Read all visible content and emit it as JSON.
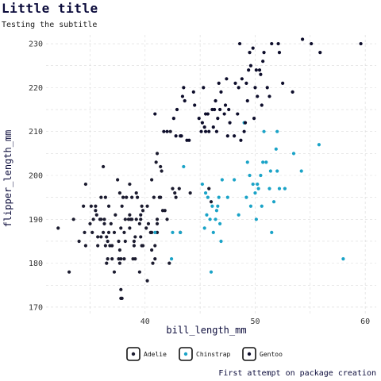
{
  "chart_data": {
    "type": "scatter",
    "title": "Little title",
    "subtitle": "Testing the subtitle",
    "caption": "First attempt on package creation",
    "xlabel": "bill_length_mm",
    "ylabel": "flipper_length_mm",
    "xlim": [
      31,
      61
    ],
    "ylim": [
      168,
      232
    ],
    "x_ticks": [
      40,
      50,
      60
    ],
    "y_ticks": [
      170,
      180,
      190,
      200,
      210,
      220,
      230
    ],
    "grid": true,
    "legend_position": "bottom",
    "series": [
      {
        "name": "Adelie",
        "color": "#1b1b2f",
        "points": [
          [
            32.1,
            188
          ],
          [
            33.1,
            178
          ],
          [
            33.5,
            190
          ],
          [
            34.0,
            185
          ],
          [
            34.4,
            193
          ],
          [
            34.5,
            187
          ],
          [
            34.6,
            184
          ],
          [
            34.6,
            198
          ],
          [
            35.0,
            189
          ],
          [
            35.1,
            193
          ],
          [
            35.2,
            187
          ],
          [
            35.3,
            190
          ],
          [
            35.5,
            192
          ],
          [
            35.5,
            193
          ],
          [
            35.6,
            191
          ],
          [
            35.7,
            184
          ],
          [
            35.7,
            186
          ],
          [
            35.9,
            190
          ],
          [
            36.0,
            186
          ],
          [
            36.0,
            190
          ],
          [
            36.0,
            195
          ],
          [
            36.2,
            187
          ],
          [
            36.2,
            202
          ],
          [
            36.3,
            189
          ],
          [
            36.3,
            190
          ],
          [
            36.4,
            184
          ],
          [
            36.4,
            195
          ],
          [
            36.5,
            180
          ],
          [
            36.5,
            186
          ],
          [
            36.6,
            181
          ],
          [
            36.6,
            185
          ],
          [
            36.7,
            187
          ],
          [
            36.7,
            193
          ],
          [
            36.8,
            184
          ],
          [
            36.9,
            189
          ],
          [
            37.0,
            181
          ],
          [
            37.0,
            184
          ],
          [
            37.2,
            178
          ],
          [
            37.2,
            187
          ],
          [
            37.3,
            191
          ],
          [
            37.5,
            199
          ],
          [
            37.6,
            181
          ],
          [
            37.6,
            185
          ],
          [
            37.7,
            180
          ],
          [
            37.7,
            183
          ],
          [
            37.7,
            196
          ],
          [
            37.8,
            172
          ],
          [
            37.8,
            174
          ],
          [
            37.8,
            181
          ],
          [
            37.8,
            188
          ],
          [
            37.9,
            172
          ],
          [
            37.9,
            193
          ],
          [
            38.0,
            195
          ],
          [
            38.1,
            181
          ],
          [
            38.1,
            187
          ],
          [
            38.2,
            185
          ],
          [
            38.2,
            190
          ],
          [
            38.3,
            195
          ],
          [
            38.5,
            190
          ],
          [
            38.6,
            188
          ],
          [
            38.6,
            191
          ],
          [
            38.6,
            198
          ],
          [
            38.7,
            190
          ],
          [
            38.8,
            190
          ],
          [
            38.8,
            195
          ],
          [
            38.9,
            181
          ],
          [
            39.0,
            184
          ],
          [
            39.0,
            185
          ],
          [
            39.1,
            181
          ],
          [
            39.1,
            186
          ],
          [
            39.2,
            190
          ],
          [
            39.2,
            196
          ],
          [
            39.3,
            195
          ],
          [
            39.5,
            178
          ],
          [
            39.5,
            189
          ],
          [
            39.6,
            186
          ],
          [
            39.6,
            190
          ],
          [
            39.6,
            191
          ],
          [
            39.7,
            184
          ],
          [
            39.7,
            193
          ],
          [
            39.8,
            184
          ],
          [
            39.8,
            192
          ],
          [
            40.1,
            188
          ],
          [
            40.2,
            176
          ],
          [
            40.2,
            193
          ],
          [
            40.3,
            189
          ],
          [
            40.5,
            187
          ],
          [
            40.6,
            183
          ],
          [
            40.6,
            187
          ],
          [
            40.6,
            199
          ],
          [
            40.7,
            180
          ],
          [
            40.8,
            195
          ],
          [
            40.9,
            181
          ],
          [
            40.9,
            184
          ],
          [
            41.0,
            203
          ],
          [
            41.1,
            187
          ],
          [
            41.1,
            189
          ],
          [
            41.1,
            190
          ],
          [
            41.1,
            205
          ],
          [
            41.3,
            195
          ],
          [
            41.4,
            195
          ],
          [
            41.4,
            202
          ],
          [
            41.5,
            201
          ],
          [
            41.6,
            192
          ],
          [
            41.8,
            192
          ],
          [
            42.0,
            190
          ],
          [
            42.2,
            180
          ],
          [
            42.3,
            210
          ],
          [
            42.5,
            197
          ],
          [
            42.7,
            196
          ],
          [
            42.8,
            195
          ],
          [
            43.1,
            197
          ],
          [
            43.2,
            187
          ],
          [
            44.1,
            196
          ],
          [
            45.8,
            197
          ],
          [
            46.0,
            194
          ]
        ]
      },
      {
        "name": "Chinstrap",
        "color": "#1aa3c7",
        "points": [
          [
            40.9,
            187
          ],
          [
            42.4,
            181
          ],
          [
            42.5,
            187
          ],
          [
            43.2,
            187
          ],
          [
            43.5,
            202
          ],
          [
            45.2,
            198
          ],
          [
            45.4,
            188
          ],
          [
            45.5,
            196
          ],
          [
            45.6,
            191
          ],
          [
            45.7,
            195
          ],
          [
            45.9,
            190
          ],
          [
            46.0,
            178
          ],
          [
            46.1,
            193
          ],
          [
            46.2,
            187
          ],
          [
            46.4,
            190
          ],
          [
            46.5,
            192
          ],
          [
            46.6,
            193
          ],
          [
            46.7,
            195
          ],
          [
            46.8,
            189
          ],
          [
            46.9,
            185
          ],
          [
            47.0,
            199
          ],
          [
            47.5,
            195
          ],
          [
            48.1,
            199
          ],
          [
            48.5,
            191
          ],
          [
            49.0,
            212
          ],
          [
            49.2,
            195
          ],
          [
            49.3,
            203
          ],
          [
            49.5,
            200
          ],
          [
            49.6,
            193
          ],
          [
            49.8,
            198
          ],
          [
            50.0,
            196
          ],
          [
            50.1,
            190
          ],
          [
            50.2,
            198
          ],
          [
            50.3,
            197
          ],
          [
            50.5,
            200
          ],
          [
            50.6,
            193
          ],
          [
            50.7,
            203
          ],
          [
            50.8,
            210
          ],
          [
            51.0,
            203
          ],
          [
            51.3,
            197
          ],
          [
            51.4,
            201
          ],
          [
            51.5,
            187
          ],
          [
            51.7,
            194
          ],
          [
            51.9,
            206
          ],
          [
            52.0,
            201
          ],
          [
            52.0,
            210
          ],
          [
            52.2,
            197
          ],
          [
            52.7,
            197
          ],
          [
            53.5,
            205
          ],
          [
            54.2,
            201
          ],
          [
            55.8,
            207
          ],
          [
            58.0,
            181
          ]
        ]
      },
      {
        "name": "Gentoo",
        "color": "#0d0d2b",
        "points": [
          [
            40.9,
            214
          ],
          [
            41.7,
            210
          ],
          [
            42.0,
            210
          ],
          [
            42.6,
            213
          ],
          [
            42.8,
            209
          ],
          [
            42.9,
            215
          ],
          [
            43.2,
            209
          ],
          [
            43.3,
            209
          ],
          [
            43.4,
            218
          ],
          [
            43.5,
            220
          ],
          [
            43.6,
            217
          ],
          [
            43.8,
            208
          ],
          [
            44.0,
            208
          ],
          [
            44.4,
            219
          ],
          [
            44.5,
            216
          ],
          [
            44.9,
            213
          ],
          [
            45.1,
            210
          ],
          [
            45.2,
            212
          ],
          [
            45.3,
            220
          ],
          [
            45.4,
            211
          ],
          [
            45.5,
            210
          ],
          [
            45.5,
            214
          ],
          [
            45.7,
            214
          ],
          [
            45.8,
            210
          ],
          [
            46.1,
            215
          ],
          [
            46.2,
            211
          ],
          [
            46.3,
            215
          ],
          [
            46.4,
            217
          ],
          [
            46.5,
            210
          ],
          [
            46.6,
            213
          ],
          [
            46.7,
            221
          ],
          [
            46.8,
            215
          ],
          [
            46.9,
            219
          ],
          [
            47.2,
            214
          ],
          [
            47.3,
            216
          ],
          [
            47.4,
            222
          ],
          [
            47.5,
            209
          ],
          [
            47.6,
            215
          ],
          [
            47.7,
            212
          ],
          [
            48.1,
            209
          ],
          [
            48.2,
            221
          ],
          [
            48.4,
            214
          ],
          [
            48.5,
            220
          ],
          [
            48.6,
            230
          ],
          [
            48.7,
            208
          ],
          [
            48.8,
            222
          ],
          [
            49.0,
            210
          ],
          [
            49.1,
            212
          ],
          [
            49.2,
            221
          ],
          [
            49.3,
            217
          ],
          [
            49.4,
            224
          ],
          [
            49.5,
            228
          ],
          [
            49.6,
            225
          ],
          [
            49.8,
            229
          ],
          [
            49.9,
            213
          ],
          [
            50.0,
            220
          ],
          [
            50.1,
            224
          ],
          [
            50.2,
            218
          ],
          [
            50.4,
            224
          ],
          [
            50.5,
            223
          ],
          [
            50.6,
            216
          ],
          [
            50.7,
            226
          ],
          [
            50.8,
            228
          ],
          [
            51.1,
            220
          ],
          [
            51.3,
            218
          ],
          [
            51.5,
            230
          ],
          [
            52.1,
            230
          ],
          [
            52.2,
            228
          ],
          [
            52.5,
            221
          ],
          [
            53.4,
            219
          ],
          [
            54.3,
            231
          ],
          [
            55.1,
            230
          ],
          [
            55.9,
            228
          ],
          [
            59.6,
            230
          ]
        ]
      }
    ]
  }
}
